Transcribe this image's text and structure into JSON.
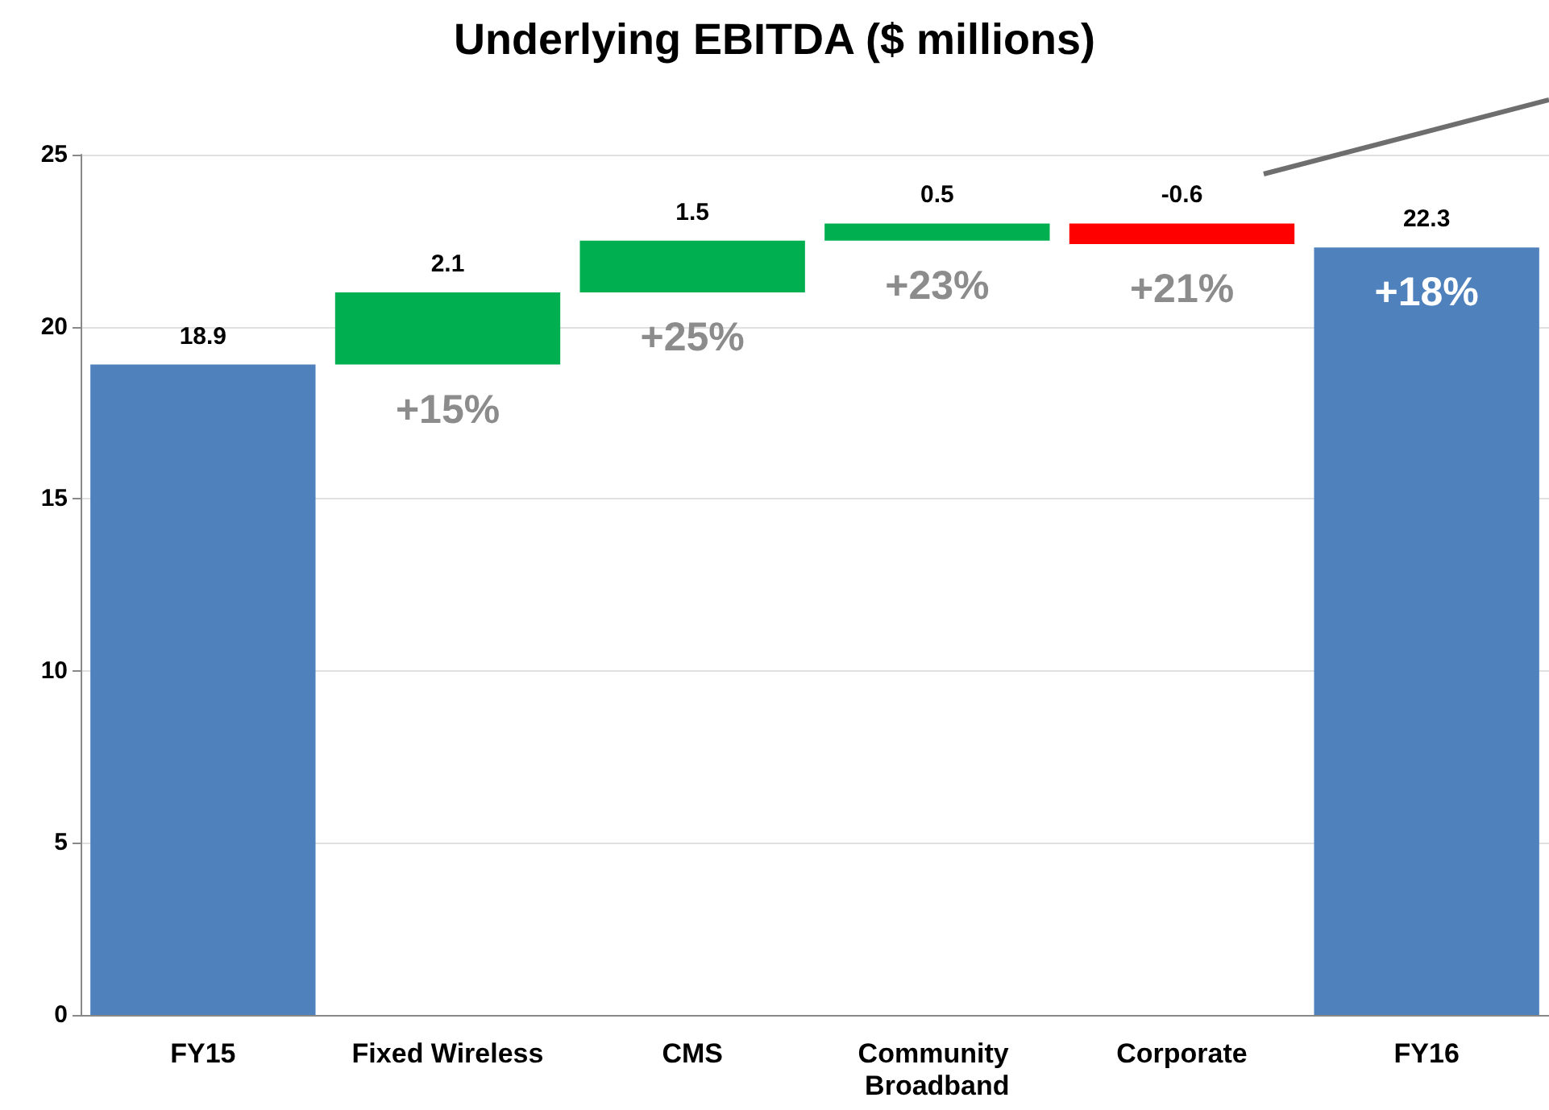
{
  "chart_data": {
    "type": "bar",
    "title": "Underlying EBITDA ($ millions)",
    "categories": [
      "FY15",
      "Fixed Wireless",
      "CMS",
      "Community Broadband",
      "Corporate",
      "FY16"
    ],
    "values": [
      18.9,
      2.1,
      1.5,
      0.5,
      -0.6,
      22.3
    ],
    "base": [
      0,
      18.9,
      21.0,
      22.5,
      23.0,
      0
    ],
    "colors": [
      "#4f81bd",
      "#00b050",
      "#00b050",
      "#00b050",
      "#ff0000",
      "#4f81bd"
    ],
    "ylim": [
      0,
      25
    ],
    "yticks": [
      0,
      5,
      10,
      15,
      20,
      25
    ],
    "grid": "y",
    "data_labels": true,
    "annotations": [
      "+15%",
      "+25%",
      "+23%",
      "+21%",
      "+18%"
    ]
  }
}
